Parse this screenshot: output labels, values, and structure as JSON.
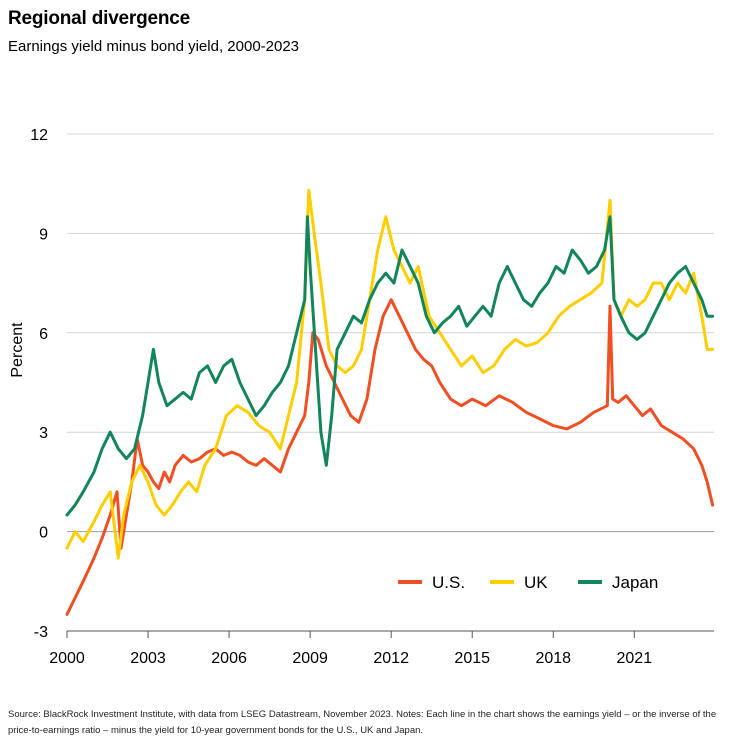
{
  "title": "Regional divergence",
  "subtitle": "Earnings yield minus bond yield, 2000-2023",
  "source": "Source: BlackRock Investment Institute, with data from LSEG Datastream, November 2023. Notes: Each line in the chart shows the earnings yield – or the inverse of the price-to-earnings ratio – minus the yield for 10-year government bonds for the U.S., UK and Japan.",
  "chart_data": {
    "type": "line",
    "ylabel": "Percent",
    "xlabel": "",
    "ylim": [
      -3,
      12
    ],
    "xlim": [
      2000,
      2023.95
    ],
    "yticks": [
      -3,
      0,
      3,
      6,
      9,
      12
    ],
    "xticks": [
      2000,
      2003,
      2006,
      2009,
      2012,
      2015,
      2018,
      2021
    ],
    "grid": "horizontal",
    "legend_position": "bottom-right",
    "series": [
      {
        "name": "U.S.",
        "color": "#f04e23",
        "x": [
          2000.0,
          2000.3,
          2000.6,
          2001.0,
          2001.3,
          2001.6,
          2001.85,
          2002.0,
          2002.2,
          2002.4,
          2002.6,
          2002.8,
          2003.0,
          2003.2,
          2003.4,
          2003.6,
          2003.8,
          2004.0,
          2004.3,
          2004.6,
          2004.9,
          2005.2,
          2005.5,
          2005.8,
          2006.1,
          2006.4,
          2006.7,
          2007.0,
          2007.3,
          2007.6,
          2007.9,
          2008.2,
          2008.5,
          2008.8,
          2008.95,
          2009.1,
          2009.3,
          2009.6,
          2009.9,
          2010.2,
          2010.5,
          2010.8,
          2011.1,
          2011.4,
          2011.7,
          2012.0,
          2012.3,
          2012.6,
          2012.9,
          2013.2,
          2013.5,
          2013.8,
          2014.2,
          2014.6,
          2015.0,
          2015.5,
          2016.0,
          2016.5,
          2017.0,
          2017.5,
          2018.0,
          2018.5,
          2019.0,
          2019.5,
          2020.0,
          2020.1,
          2020.2,
          2020.4,
          2020.7,
          2021.0,
          2021.3,
          2021.6,
          2022.0,
          2022.4,
          2022.8,
          2023.2,
          2023.5,
          2023.7,
          2023.9
        ],
        "y": [
          -2.5,
          -2.0,
          -1.5,
          -0.8,
          -0.2,
          0.5,
          1.2,
          -0.5,
          0.5,
          1.5,
          2.8,
          2.0,
          1.8,
          1.5,
          1.3,
          1.8,
          1.5,
          2.0,
          2.3,
          2.1,
          2.2,
          2.4,
          2.5,
          2.3,
          2.4,
          2.3,
          2.1,
          2.0,
          2.2,
          2.0,
          1.8,
          2.5,
          3.0,
          3.5,
          4.5,
          6.0,
          5.8,
          5.0,
          4.5,
          4.0,
          3.5,
          3.3,
          4.0,
          5.5,
          6.5,
          7.0,
          6.5,
          6.0,
          5.5,
          5.2,
          5.0,
          4.5,
          4.0,
          3.8,
          4.0,
          3.8,
          4.1,
          3.9,
          3.6,
          3.4,
          3.2,
          3.1,
          3.3,
          3.6,
          3.8,
          6.8,
          4.0,
          3.9,
          4.1,
          3.8,
          3.5,
          3.7,
          3.2,
          3.0,
          2.8,
          2.5,
          2.0,
          1.5,
          0.8
        ]
      },
      {
        "name": "UK",
        "color": "#ffce00",
        "x": [
          2000.0,
          2000.3,
          2000.6,
          2001.0,
          2001.3,
          2001.6,
          2001.9,
          2002.1,
          2002.4,
          2002.7,
          2003.0,
          2003.3,
          2003.6,
          2003.9,
          2004.2,
          2004.5,
          2004.8,
          2005.1,
          2005.5,
          2005.9,
          2006.3,
          2006.7,
          2007.1,
          2007.5,
          2007.9,
          2008.2,
          2008.5,
          2008.8,
          2008.95,
          2009.15,
          2009.4,
          2009.7,
          2010.0,
          2010.3,
          2010.6,
          2010.9,
          2011.2,
          2011.5,
          2011.8,
          2012.1,
          2012.4,
          2012.7,
          2013.0,
          2013.4,
          2013.8,
          2014.2,
          2014.6,
          2015.0,
          2015.4,
          2015.8,
          2016.2,
          2016.6,
          2017.0,
          2017.4,
          2017.8,
          2018.2,
          2018.6,
          2019.0,
          2019.4,
          2019.8,
          2020.1,
          2020.25,
          2020.5,
          2020.8,
          2021.1,
          2021.4,
          2021.7,
          2022.0,
          2022.3,
          2022.6,
          2022.9,
          2023.2,
          2023.5,
          2023.7,
          2023.9
        ],
        "y": [
          -0.5,
          0.0,
          -0.3,
          0.3,
          0.8,
          1.2,
          -0.8,
          0.5,
          1.5,
          2.0,
          1.5,
          0.8,
          0.5,
          0.8,
          1.2,
          1.5,
          1.2,
          2.0,
          2.5,
          3.5,
          3.8,
          3.6,
          3.2,
          3.0,
          2.5,
          3.5,
          4.5,
          7.0,
          10.3,
          9.0,
          7.5,
          5.5,
          5.0,
          4.8,
          5.0,
          5.5,
          7.0,
          8.5,
          9.5,
          8.5,
          8.0,
          7.5,
          8.0,
          6.5,
          6.0,
          5.5,
          5.0,
          5.3,
          4.8,
          5.0,
          5.5,
          5.8,
          5.6,
          5.7,
          6.0,
          6.5,
          6.8,
          7.0,
          7.2,
          7.5,
          10.0,
          7.0,
          6.5,
          7.0,
          6.8,
          7.0,
          7.5,
          7.5,
          7.0,
          7.5,
          7.2,
          7.8,
          6.5,
          5.5,
          5.5
        ]
      },
      {
        "name": "Japan",
        "color": "#12855a",
        "x": [
          2000.0,
          2000.3,
          2000.6,
          2001.0,
          2001.3,
          2001.6,
          2001.9,
          2002.2,
          2002.5,
          2002.8,
          2003.0,
          2003.2,
          2003.4,
          2003.7,
          2004.0,
          2004.3,
          2004.6,
          2004.9,
          2005.2,
          2005.5,
          2005.8,
          2006.1,
          2006.4,
          2006.7,
          2007.0,
          2007.3,
          2007.6,
          2007.9,
          2008.2,
          2008.5,
          2008.8,
          2008.9,
          2009.0,
          2009.2,
          2009.4,
          2009.6,
          2009.8,
          2010.0,
          2010.3,
          2010.6,
          2010.9,
          2011.2,
          2011.5,
          2011.8,
          2012.1,
          2012.4,
          2012.7,
          2013.0,
          2013.3,
          2013.6,
          2013.9,
          2014.2,
          2014.5,
          2014.8,
          2015.1,
          2015.4,
          2015.7,
          2016.0,
          2016.3,
          2016.6,
          2016.9,
          2017.2,
          2017.5,
          2017.8,
          2018.1,
          2018.4,
          2018.7,
          2019.0,
          2019.3,
          2019.6,
          2019.9,
          2020.1,
          2020.25,
          2020.5,
          2020.8,
          2021.1,
          2021.4,
          2021.7,
          2022.0,
          2022.3,
          2022.6,
          2022.9,
          2023.2,
          2023.5,
          2023.7,
          2023.9
        ],
        "y": [
          0.5,
          0.8,
          1.2,
          1.8,
          2.5,
          3.0,
          2.5,
          2.2,
          2.5,
          3.5,
          4.5,
          5.5,
          4.5,
          3.8,
          4.0,
          4.2,
          4.0,
          4.8,
          5.0,
          4.5,
          5.0,
          5.2,
          4.5,
          4.0,
          3.5,
          3.8,
          4.2,
          4.5,
          5.0,
          6.0,
          7.0,
          9.5,
          8.0,
          5.5,
          3.0,
          2.0,
          3.5,
          5.5,
          6.0,
          6.5,
          6.3,
          7.0,
          7.5,
          7.8,
          7.5,
          8.5,
          8.0,
          7.5,
          6.5,
          6.0,
          6.3,
          6.5,
          6.8,
          6.2,
          6.5,
          6.8,
          6.5,
          7.5,
          8.0,
          7.5,
          7.0,
          6.8,
          7.2,
          7.5,
          8.0,
          7.8,
          8.5,
          8.2,
          7.8,
          8.0,
          8.5,
          9.5,
          7.0,
          6.5,
          6.0,
          5.8,
          6.0,
          6.5,
          7.0,
          7.5,
          7.8,
          8.0,
          7.5,
          7.0,
          6.5,
          6.5
        ]
      }
    ]
  }
}
